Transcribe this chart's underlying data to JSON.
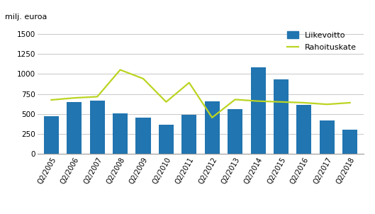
{
  "categories": [
    "Q2/2005",
    "Q2/2006",
    "Q2/2007",
    "Q2/2008",
    "Q2/2009",
    "Q2/2010",
    "Q2/2011",
    "Q2/2012",
    "Q2/2013",
    "Q2/2014",
    "Q2/2015",
    "Q2/2016",
    "Q2/2017",
    "Q2/2018"
  ],
  "bar_values": [
    470,
    650,
    665,
    510,
    455,
    370,
    490,
    660,
    560,
    1080,
    930,
    610,
    415,
    305
  ],
  "line_values": [
    675,
    700,
    715,
    1050,
    940,
    650,
    890,
    455,
    680,
    660,
    650,
    640,
    620,
    640
  ],
  "bar_color": "#2175b0",
  "line_color": "#bcd422",
  "ylabel": "milj. euroa",
  "ylim": [
    0,
    1600
  ],
  "yticks": [
    0,
    250,
    500,
    750,
    1000,
    1250,
    1500
  ],
  "legend_bar_label": "Liikevoitto",
  "legend_line_label": "Rahoituskate",
  "background_color": "#ffffff",
  "grid_color": "#c8c8c8"
}
